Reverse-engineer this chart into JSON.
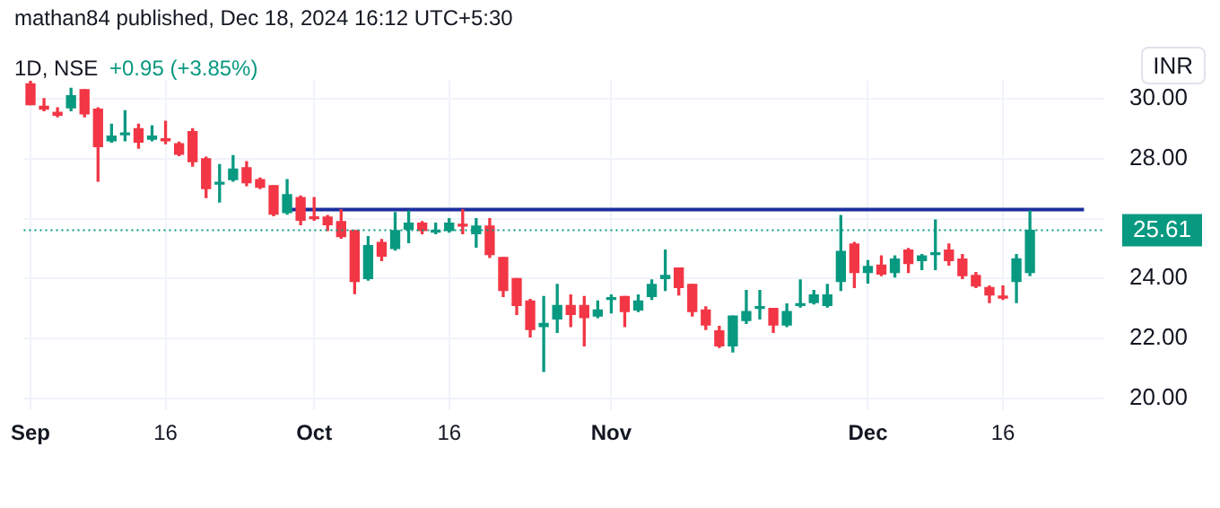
{
  "chart_data": {
    "type": "candlestick",
    "title": "mathan84 published, Dec 18, 2024 16:12 UTC+5:30",
    "subtitle": "1D, NSE",
    "annotations": [
      "+0.95 (+3.85%)"
    ],
    "ylabel": "INR",
    "categories": [
      "Sep",
      null,
      null,
      null,
      null,
      null,
      null,
      null,
      null,
      null,
      "16",
      null,
      null,
      null,
      null,
      null,
      null,
      null,
      null,
      null,
      null,
      "Oct",
      null,
      null,
      null,
      null,
      null,
      null,
      null,
      null,
      null,
      "16",
      null,
      null,
      null,
      null,
      null,
      null,
      null,
      null,
      null,
      null,
      null,
      "Nov",
      null,
      null,
      null,
      null,
      null,
      null,
      null,
      null,
      null,
      null,
      null,
      null,
      null,
      null,
      null,
      null,
      null,
      null,
      "Dec",
      null,
      null,
      null,
      null,
      null,
      null,
      null,
      null,
      null,
      "16",
      null,
      null,
      null,
      null,
      null,
      null,
      null
    ],
    "series": [
      {
        "type": "candlestick",
        "ohlc": [
          [
            30.5,
            30.6,
            29.8,
            29.8
          ],
          [
            29.75,
            30.0,
            29.6,
            29.65
          ],
          [
            29.55,
            29.7,
            29.4,
            29.45
          ],
          [
            29.7,
            30.35,
            29.6,
            30.1
          ],
          [
            30.3,
            30.3,
            29.4,
            29.5
          ],
          [
            29.65,
            29.7,
            27.25,
            28.4
          ],
          [
            28.6,
            29.15,
            28.55,
            28.75
          ],
          [
            28.8,
            29.6,
            28.6,
            28.85
          ],
          [
            29.0,
            29.15,
            28.35,
            28.55
          ],
          [
            28.65,
            29.1,
            28.6,
            28.75
          ],
          [
            28.65,
            29.25,
            28.5,
            28.6
          ],
          [
            28.5,
            28.55,
            28.1,
            28.15
          ],
          [
            28.9,
            29.0,
            27.75,
            27.9
          ],
          [
            28.0,
            28.05,
            26.7,
            27.0
          ],
          [
            27.15,
            27.8,
            26.55,
            27.2
          ],
          [
            27.3,
            28.1,
            27.25,
            27.65
          ],
          [
            27.7,
            27.9,
            27.1,
            27.2
          ],
          [
            27.3,
            27.35,
            27.0,
            27.05
          ],
          [
            27.1,
            27.1,
            26.1,
            26.15
          ],
          [
            26.2,
            27.3,
            26.15,
            26.8
          ],
          [
            26.7,
            26.75,
            25.8,
            25.95
          ],
          [
            26.05,
            26.7,
            25.95,
            26.0
          ],
          [
            26.05,
            26.1,
            25.6,
            25.8
          ],
          [
            25.9,
            26.3,
            25.35,
            25.4
          ],
          [
            25.6,
            25.6,
            23.5,
            23.9
          ],
          [
            24.0,
            25.4,
            23.95,
            25.1
          ],
          [
            25.2,
            25.3,
            24.6,
            24.75
          ],
          [
            25.0,
            26.2,
            24.95,
            25.6
          ],
          [
            25.65,
            26.25,
            25.2,
            25.85
          ],
          [
            25.85,
            25.9,
            25.5,
            25.6
          ],
          [
            25.55,
            25.85,
            25.5,
            25.6
          ],
          [
            25.6,
            26.0,
            25.55,
            25.85
          ],
          [
            25.8,
            26.3,
            25.5,
            25.75
          ],
          [
            25.5,
            26.0,
            25.05,
            25.75
          ],
          [
            25.75,
            26.0,
            24.7,
            24.8
          ],
          [
            24.7,
            24.7,
            23.4,
            23.6
          ],
          [
            24.0,
            24.0,
            22.8,
            23.1
          ],
          [
            23.25,
            23.3,
            22.05,
            22.3
          ],
          [
            22.4,
            23.4,
            20.9,
            22.5
          ],
          [
            22.65,
            23.8,
            22.2,
            23.1
          ],
          [
            23.1,
            23.45,
            22.4,
            22.8
          ],
          [
            23.1,
            23.4,
            21.75,
            22.7
          ],
          [
            22.75,
            23.25,
            22.7,
            22.95
          ],
          [
            23.3,
            23.45,
            22.85,
            23.35
          ],
          [
            23.4,
            23.4,
            22.4,
            22.9
          ],
          [
            22.95,
            23.45,
            22.9,
            23.25
          ],
          [
            23.4,
            23.95,
            23.3,
            23.8
          ],
          [
            24.0,
            24.95,
            23.6,
            24.1
          ],
          [
            24.35,
            24.35,
            23.45,
            23.7
          ],
          [
            23.8,
            23.8,
            22.75,
            22.9
          ],
          [
            22.95,
            23.05,
            22.3,
            22.45
          ],
          [
            22.25,
            22.4,
            21.7,
            21.75
          ],
          [
            21.75,
            22.75,
            21.55,
            22.75
          ],
          [
            22.6,
            23.6,
            22.5,
            22.9
          ],
          [
            23.0,
            23.6,
            22.65,
            23.05
          ],
          [
            23.0,
            23.0,
            22.2,
            22.45
          ],
          [
            22.45,
            23.15,
            22.4,
            22.9
          ],
          [
            23.1,
            23.95,
            23.05,
            23.15
          ],
          [
            23.2,
            23.6,
            23.15,
            23.45
          ],
          [
            23.1,
            23.8,
            23.05,
            23.45
          ],
          [
            23.9,
            26.1,
            23.6,
            24.9
          ],
          [
            25.15,
            25.2,
            23.7,
            24.2
          ],
          [
            24.2,
            24.6,
            23.85,
            24.4
          ],
          [
            24.45,
            24.75,
            24.1,
            24.15
          ],
          [
            24.2,
            24.75,
            24.05,
            24.65
          ],
          [
            24.95,
            25.0,
            24.2,
            24.5
          ],
          [
            24.6,
            24.8,
            24.3,
            24.75
          ],
          [
            24.8,
            25.95,
            24.3,
            24.85
          ],
          [
            24.95,
            25.15,
            24.45,
            24.6
          ],
          [
            24.65,
            24.8,
            24.0,
            24.1
          ],
          [
            24.1,
            24.2,
            23.7,
            23.75
          ],
          [
            23.7,
            23.75,
            23.2,
            23.45
          ],
          [
            23.4,
            23.75,
            23.3,
            23.35
          ],
          [
            23.9,
            24.8,
            23.2,
            24.66
          ],
          [
            24.2,
            26.25,
            24.1,
            25.61
          ],
          null,
          null,
          null,
          null,
          null
        ],
        "colors": [
          "#f23645",
          "#f23645",
          "#f23645",
          "#089981",
          "#f23645",
          "#f23645",
          "#089981",
          "#089981",
          "#f23645",
          "#089981",
          "#f23645",
          "#f23645",
          "#f23645",
          "#f23645",
          "#089981",
          "#089981",
          "#f23645",
          "#f23645",
          "#f23645",
          "#089981",
          "#f23645",
          "#f23645",
          "#f23645",
          "#f23645",
          "#f23645",
          "#089981",
          "#f23645",
          "#089981",
          "#089981",
          "#f23645",
          "#089981",
          "#089981",
          "#f23645",
          "#089981",
          "#f23645",
          "#f23645",
          "#f23645",
          "#f23645",
          "#089981",
          "#089981",
          "#f23645",
          "#f23645",
          "#089981",
          "#089981",
          "#f23645",
          "#089981",
          "#089981",
          "#089981",
          "#f23645",
          "#f23645",
          "#f23645",
          "#f23645",
          "#089981",
          "#089981",
          "#089981",
          "#f23645",
          "#089981",
          "#089981",
          "#089981",
          "#089981",
          "#089981",
          "#f23645",
          "#089981",
          "#f23645",
          "#089981",
          "#f23645",
          "#089981",
          "#089981",
          "#f23645",
          "#f23645",
          "#f23645",
          "#f23645",
          "#f23645",
          "#089981",
          "#089981",
          null,
          null,
          null,
          null,
          null
        ]
      },
      {
        "type": "line",
        "color": "#1c2e9e",
        "values": [
          null,
          null,
          null,
          null,
          null,
          null,
          null,
          null,
          null,
          null,
          null,
          null,
          null,
          null,
          null,
          null,
          null,
          null,
          null,
          26.3,
          26.3,
          26.3,
          26.3,
          26.3,
          26.3,
          26.3,
          26.3,
          26.3,
          26.3,
          26.3,
          26.3,
          26.3,
          26.3,
          26.3,
          26.3,
          26.3,
          26.3,
          26.3,
          26.3,
          26.3,
          26.3,
          26.3,
          26.3,
          26.3,
          26.3,
          26.3,
          26.3,
          26.3,
          26.3,
          26.3,
          26.3,
          26.3,
          26.3,
          26.3,
          26.3,
          26.3,
          26.3,
          26.3,
          26.3,
          26.3,
          26.3,
          26.3,
          26.3,
          26.3,
          26.3,
          26.3,
          26.3,
          26.3,
          26.3,
          26.3,
          26.3,
          26.3,
          26.3,
          26.3,
          26.3,
          26.3,
          26.3,
          26.3,
          26.3,
          null
        ]
      }
    ],
    "ylim": [
      19.6,
      30.6
    ],
    "yticks": [
      {
        "value": 20,
        "label": "20.00"
      },
      {
        "value": 22,
        "label": "22.00"
      },
      {
        "value": 24,
        "label": "24.00"
      },
      {
        "value": 26,
        "label": null
      },
      {
        "value": 28,
        "label": "28.00"
      },
      {
        "value": 30,
        "label": "30.00"
      }
    ],
    "ref_lines": [
      {
        "axis": "y",
        "value": 25.61,
        "label": "25.61",
        "color": "#089981",
        "line_style": "dotted"
      }
    ],
    "grid": true
  }
}
